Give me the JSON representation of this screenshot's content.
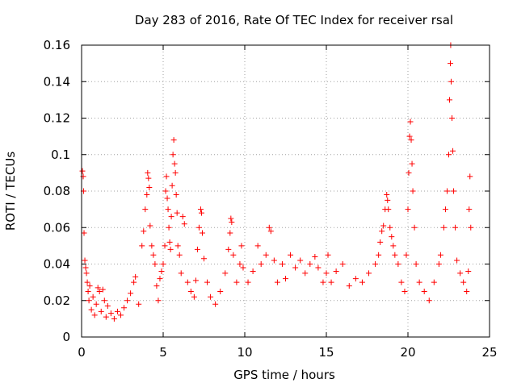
{
  "chart_data": {
    "type": "scatter",
    "title": "Day 283 of 2016, Rate Of TEC Index for receiver rsal",
    "xlabel": "GPS time / hours",
    "ylabel": "ROTI / TECUs",
    "xlim": [
      0,
      25
    ],
    "ylim": [
      0,
      0.16
    ],
    "xticks": [
      0,
      5,
      10,
      15,
      20,
      25
    ],
    "xtick_labels": [
      "0",
      "5",
      "10",
      "15",
      "20",
      "25"
    ],
    "yticks": [
      0,
      0.02,
      0.04,
      0.06,
      0.08,
      0.1,
      0.12,
      0.14,
      0.16
    ],
    "ytick_labels": [
      "0",
      "0.02",
      "0.04",
      "0.06",
      "0.08",
      "0.1",
      "0.12",
      "0.14",
      "0.16"
    ],
    "grid": true,
    "marker": "+",
    "color": "#ff0000",
    "series": [
      {
        "name": "ROTI",
        "points": [
          [
            0.05,
            0.091
          ],
          [
            0.1,
            0.088
          ],
          [
            0.12,
            0.08
          ],
          [
            0.15,
            0.057
          ],
          [
            0.2,
            0.042
          ],
          [
            0.25,
            0.038
          ],
          [
            0.3,
            0.035
          ],
          [
            0.35,
            0.03
          ],
          [
            0.4,
            0.025
          ],
          [
            0.45,
            0.02
          ],
          [
            0.5,
            0.028
          ],
          [
            0.6,
            0.015
          ],
          [
            0.7,
            0.022
          ],
          [
            0.8,
            0.012
          ],
          [
            0.9,
            0.018
          ],
          [
            1.0,
            0.027
          ],
          [
            1.1,
            0.025
          ],
          [
            1.2,
            0.014
          ],
          [
            1.3,
            0.026
          ],
          [
            1.4,
            0.02
          ],
          [
            1.5,
            0.011
          ],
          [
            1.6,
            0.017
          ],
          [
            1.8,
            0.013
          ],
          [
            2.0,
            0.01
          ],
          [
            2.2,
            0.014
          ],
          [
            2.4,
            0.012
          ],
          [
            2.6,
            0.016
          ],
          [
            2.8,
            0.02
          ],
          [
            3.0,
            0.024
          ],
          [
            3.2,
            0.03
          ],
          [
            3.3,
            0.033
          ],
          [
            3.5,
            0.018
          ],
          [
            3.7,
            0.05
          ],
          [
            3.8,
            0.058
          ],
          [
            3.9,
            0.07
          ],
          [
            4.0,
            0.078
          ],
          [
            4.05,
            0.09
          ],
          [
            4.1,
            0.087
          ],
          [
            4.15,
            0.082
          ],
          [
            4.2,
            0.061
          ],
          [
            4.3,
            0.05
          ],
          [
            4.4,
            0.045
          ],
          [
            4.5,
            0.04
          ],
          [
            4.6,
            0.028
          ],
          [
            4.7,
            0.02
          ],
          [
            4.8,
            0.032
          ],
          [
            4.9,
            0.036
          ],
          [
            5.0,
            0.04
          ],
          [
            5.1,
            0.05
          ],
          [
            5.15,
            0.08
          ],
          [
            5.2,
            0.088
          ],
          [
            5.25,
            0.076
          ],
          [
            5.3,
            0.07
          ],
          [
            5.35,
            0.06
          ],
          [
            5.4,
            0.052
          ],
          [
            5.45,
            0.048
          ],
          [
            5.5,
            0.066
          ],
          [
            5.55,
            0.083
          ],
          [
            5.6,
            0.1
          ],
          [
            5.65,
            0.108
          ],
          [
            5.7,
            0.095
          ],
          [
            5.75,
            0.09
          ],
          [
            5.8,
            0.078
          ],
          [
            5.85,
            0.068
          ],
          [
            5.9,
            0.05
          ],
          [
            6.0,
            0.045
          ],
          [
            6.1,
            0.035
          ],
          [
            6.2,
            0.066
          ],
          [
            6.3,
            0.062
          ],
          [
            6.5,
            0.03
          ],
          [
            6.7,
            0.025
          ],
          [
            6.9,
            0.022
          ],
          [
            7.0,
            0.031
          ],
          [
            7.1,
            0.048
          ],
          [
            7.2,
            0.06
          ],
          [
            7.3,
            0.07
          ],
          [
            7.35,
            0.068
          ],
          [
            7.4,
            0.057
          ],
          [
            7.5,
            0.043
          ],
          [
            7.7,
            0.03
          ],
          [
            7.9,
            0.022
          ],
          [
            8.2,
            0.018
          ],
          [
            8.5,
            0.025
          ],
          [
            8.8,
            0.035
          ],
          [
            9.0,
            0.048
          ],
          [
            9.1,
            0.057
          ],
          [
            9.15,
            0.065
          ],
          [
            9.2,
            0.063
          ],
          [
            9.3,
            0.045
          ],
          [
            9.5,
            0.03
          ],
          [
            9.7,
            0.04
          ],
          [
            9.8,
            0.05
          ],
          [
            9.9,
            0.038
          ],
          [
            10.2,
            0.03
          ],
          [
            10.5,
            0.036
          ],
          [
            10.8,
            0.05
          ],
          [
            11.0,
            0.04
          ],
          [
            11.3,
            0.045
          ],
          [
            11.5,
            0.06
          ],
          [
            11.6,
            0.058
          ],
          [
            11.8,
            0.042
          ],
          [
            12.0,
            0.03
          ],
          [
            12.3,
            0.04
          ],
          [
            12.5,
            0.032
          ],
          [
            12.8,
            0.045
          ],
          [
            13.1,
            0.038
          ],
          [
            13.4,
            0.042
          ],
          [
            13.7,
            0.035
          ],
          [
            14.0,
            0.04
          ],
          [
            14.3,
            0.044
          ],
          [
            14.5,
            0.038
          ],
          [
            14.8,
            0.03
          ],
          [
            15.0,
            0.035
          ],
          [
            15.1,
            0.045
          ],
          [
            15.3,
            0.03
          ],
          [
            15.6,
            0.036
          ],
          [
            16.0,
            0.04
          ],
          [
            16.4,
            0.028
          ],
          [
            16.8,
            0.032
          ],
          [
            17.2,
            0.03
          ],
          [
            17.6,
            0.035
          ],
          [
            18.0,
            0.04
          ],
          [
            18.2,
            0.045
          ],
          [
            18.3,
            0.052
          ],
          [
            18.4,
            0.058
          ],
          [
            18.5,
            0.061
          ],
          [
            18.6,
            0.07
          ],
          [
            18.7,
            0.078
          ],
          [
            18.75,
            0.075
          ],
          [
            18.8,
            0.07
          ],
          [
            18.9,
            0.06
          ],
          [
            19.0,
            0.055
          ],
          [
            19.1,
            0.05
          ],
          [
            19.2,
            0.045
          ],
          [
            19.4,
            0.04
          ],
          [
            19.6,
            0.03
          ],
          [
            19.8,
            0.025
          ],
          [
            19.9,
            0.045
          ],
          [
            20.0,
            0.07
          ],
          [
            20.05,
            0.09
          ],
          [
            20.1,
            0.11
          ],
          [
            20.15,
            0.118
          ],
          [
            20.2,
            0.108
          ],
          [
            20.25,
            0.095
          ],
          [
            20.3,
            0.08
          ],
          [
            20.4,
            0.06
          ],
          [
            20.5,
            0.04
          ],
          [
            20.7,
            0.03
          ],
          [
            21.0,
            0.025
          ],
          [
            21.3,
            0.02
          ],
          [
            21.6,
            0.03
          ],
          [
            21.9,
            0.04
          ],
          [
            22.0,
            0.045
          ],
          [
            22.2,
            0.06
          ],
          [
            22.3,
            0.07
          ],
          [
            22.4,
            0.08
          ],
          [
            22.5,
            0.1
          ],
          [
            22.55,
            0.13
          ],
          [
            22.6,
            0.15
          ],
          [
            22.62,
            0.16
          ],
          [
            22.65,
            0.14
          ],
          [
            22.7,
            0.12
          ],
          [
            22.75,
            0.102
          ],
          [
            22.8,
            0.08
          ],
          [
            22.9,
            0.06
          ],
          [
            23.0,
            0.042
          ],
          [
            23.2,
            0.035
          ],
          [
            23.4,
            0.03
          ],
          [
            23.6,
            0.025
          ],
          [
            23.7,
            0.036
          ],
          [
            23.75,
            0.07
          ],
          [
            23.8,
            0.088
          ],
          [
            23.85,
            0.06
          ]
        ]
      }
    ]
  }
}
